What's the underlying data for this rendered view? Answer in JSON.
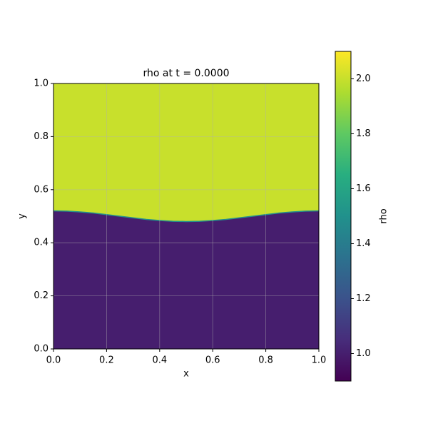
{
  "chart_data": {
    "type": "heatmap",
    "title": "rho at t = 0.0000",
    "x_label": "x",
    "y_label": "y",
    "xlim": [
      0,
      1
    ],
    "ylim": [
      0,
      1
    ],
    "xticks": [
      {
        "value": 0,
        "label": "0.0"
      },
      0.2,
      0.4,
      0.6,
      0.8,
      {
        "value": 1,
        "label": "1.0"
      }
    ],
    "yticks": [
      {
        "value": 0,
        "label": "0.0"
      },
      0.2,
      0.4,
      0.6,
      0.8,
      {
        "value": 1,
        "label": "1.0"
      }
    ],
    "grid": true,
    "colormap": "viridis",
    "x": [
      0,
      0.05,
      0.1,
      0.15,
      0.2,
      0.25,
      0.3,
      0.35,
      0.4,
      0.45,
      0.5,
      0.55,
      0.6,
      0.65,
      0.7,
      0.75,
      0.8,
      0.85,
      0.9,
      0.95,
      1
    ],
    "interface": [
      0.52,
      0.519,
      0.516,
      0.512,
      0.506,
      0.5,
      0.494,
      0.488,
      0.484,
      0.481,
      0.48,
      0.481,
      0.484,
      0.488,
      0.494,
      0.5,
      0.506,
      0.512,
      0.516,
      0.519,
      0.52
    ],
    "upper_value": 2.0,
    "lower_value": 1.0,
    "colorbar": {
      "label": "rho",
      "clim": [
        0.9,
        2.1
      ],
      "ticks": [
        {
          "value": 1,
          "label": "1.0"
        },
        1.2,
        1.4,
        1.6,
        1.8,
        {
          "value": 2,
          "label": "2.0"
        }
      ]
    }
  }
}
